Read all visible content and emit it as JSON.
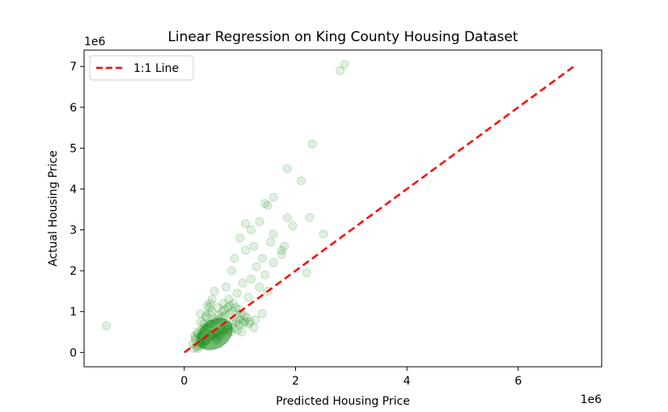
{
  "chart_data": {
    "type": "scatter",
    "title": "Linear Regression on King County Housing Dataset",
    "xlabel": "Predicted Housing Price",
    "ylabel": "Actual Housing Price",
    "x_offset_label": "1e6",
    "y_offset_label": "1e6",
    "xlim": [
      -1.8,
      7.5
    ],
    "ylim": [
      -0.35,
      7.4
    ],
    "xticks": [
      0,
      2,
      4,
      6
    ],
    "yticks": [
      0,
      1,
      2,
      3,
      4,
      5,
      6,
      7
    ],
    "grid": false,
    "legend": {
      "placement": "top-left",
      "entries": [
        "1:1 Line"
      ]
    },
    "reference_line": {
      "name": "1:1 Line",
      "x": [
        0,
        7.05
      ],
      "y": [
        0,
        7.05
      ],
      "color": "#ff0000",
      "style": "dashed"
    },
    "point_color": "#008000",
    "point_alpha": 0.12,
    "series": [
      {
        "x": [
          -1.4,
          2.8,
          2.88,
          2.3,
          1.85,
          2.1,
          1.6,
          1.45,
          1.5,
          1.85,
          2.25,
          1.95,
          2.5,
          1.6,
          1.75,
          1.1,
          1.2,
          1.35,
          1.55,
          1.8,
          2.2,
          1.75,
          1.6,
          1.4,
          1.25,
          1.0,
          1.3,
          1.45,
          0.9,
          1.1,
          1.2,
          0.85,
          1.05,
          1.5,
          1.35,
          0.95,
          0.75,
          0.8,
          1.15,
          0.7,
          0.6,
          0.5,
          0.45,
          0.4,
          0.35,
          0.3,
          0.25,
          0.2,
          0.22,
          0.28,
          0.33,
          0.38,
          0.42,
          0.48,
          0.55,
          0.62,
          0.68,
          0.72,
          0.78,
          0.82,
          0.88,
          0.92,
          0.98,
          1.02,
          1.08,
          1.12,
          1.18,
          1.25,
          0.65,
          0.58,
          0.52,
          0.46,
          0.4,
          0.36,
          0.31,
          0.27,
          0.24,
          0.18,
          0.15,
          0.2,
          0.26,
          0.32,
          0.37,
          0.43,
          0.49,
          0.56,
          0.63,
          0.69,
          0.74,
          0.79,
          0.86,
          0.93,
          0.99,
          1.06,
          0.57,
          0.61,
          0.66,
          0.71,
          0.77,
          0.84,
          0.9,
          0.96,
          1.03,
          0.35,
          0.44,
          0.53,
          0.6,
          0.67,
          0.73,
          0.81,
          0.87,
          0.94,
          1.0,
          1.09,
          1.16,
          1.28,
          1.4,
          0.5,
          0.54,
          0.47,
          0.41,
          0.29,
          0.23,
          0.19,
          0.3,
          0.39,
          0.45
        ],
        "y": [
          0.65,
          6.9,
          7.05,
          5.1,
          4.5,
          4.2,
          3.8,
          3.65,
          3.6,
          3.3,
          3.3,
          3.1,
          2.9,
          2.9,
          2.5,
          3.15,
          3.0,
          3.2,
          2.7,
          2.6,
          1.95,
          2.4,
          2.2,
          2.3,
          2.6,
          2.8,
          2.1,
          1.9,
          2.3,
          2.5,
          1.8,
          2.0,
          1.7,
          1.5,
          1.6,
          1.45,
          1.6,
          1.3,
          1.35,
          1.2,
          1.1,
          1.0,
          0.95,
          0.85,
          0.7,
          0.55,
          0.45,
          0.35,
          0.15,
          0.25,
          0.4,
          0.5,
          0.6,
          0.7,
          0.8,
          0.9,
          1.0,
          1.05,
          1.1,
          1.15,
          1.2,
          1.1,
          1.05,
          0.95,
          0.9,
          0.85,
          0.75,
          0.6,
          0.55,
          0.5,
          0.45,
          0.4,
          0.3,
          0.25,
          0.2,
          0.15,
          0.1,
          0.1,
          0.2,
          0.3,
          0.35,
          0.2,
          0.28,
          0.35,
          0.42,
          0.38,
          0.45,
          0.55,
          0.6,
          0.65,
          0.7,
          0.75,
          0.68,
          0.72,
          0.3,
          0.35,
          0.4,
          0.5,
          0.55,
          0.5,
          0.6,
          0.55,
          0.5,
          0.6,
          0.7,
          0.75,
          0.8,
          0.85,
          0.9,
          0.95,
          1.0,
          0.85,
          0.8,
          0.75,
          0.7,
          0.8,
          0.95,
          1.3,
          1.5,
          1.2,
          1.15,
          0.95,
          0.5,
          0.4,
          0.75,
          0.9,
          1.1
        ]
      }
    ]
  }
}
